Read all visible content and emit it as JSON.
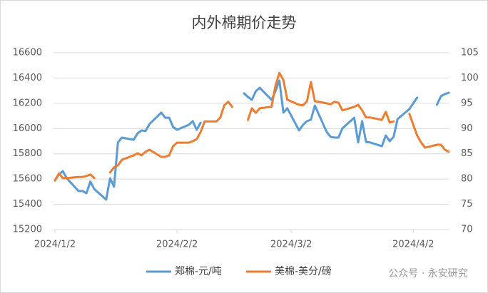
{
  "chart_data": {
    "type": "line",
    "title": "内外棉期价走势",
    "x": [
      "2024-01-02",
      "2024-01-03",
      "2024-01-04",
      "2024-01-05",
      "2024-01-08",
      "2024-01-09",
      "2024-01-10",
      "2024-01-11",
      "2024-01-12",
      "2024-01-15",
      "2024-01-16",
      "2024-01-17",
      "2024-01-18",
      "2024-01-19",
      "2024-01-22",
      "2024-01-23",
      "2024-01-24",
      "2024-01-25",
      "2024-01-26",
      "2024-01-29",
      "2024-01-30",
      "2024-01-31",
      "2024-02-01",
      "2024-02-02",
      "2024-02-05",
      "2024-02-06",
      "2024-02-07",
      "2024-02-08",
      "2024-02-09",
      "2024-02-12",
      "2024-02-13",
      "2024-02-14",
      "2024-02-15",
      "2024-02-16",
      "2024-02-19",
      "2024-02-20",
      "2024-02-21",
      "2024-02-22",
      "2024-02-23",
      "2024-02-26",
      "2024-02-27",
      "2024-02-28",
      "2024-02-29",
      "2024-03-01",
      "2024-03-04",
      "2024-03-05",
      "2024-03-06",
      "2024-03-07",
      "2024-03-08",
      "2024-03-11",
      "2024-03-12",
      "2024-03-13",
      "2024-03-14",
      "2024-03-15",
      "2024-03-18",
      "2024-03-19",
      "2024-03-20",
      "2024-03-21",
      "2024-03-22",
      "2024-03-25",
      "2024-03-26",
      "2024-03-27",
      "2024-03-28",
      "2024-03-29",
      "2024-04-01",
      "2024-04-02",
      "2024-04-03",
      "2024-04-04",
      "2024-04-05",
      "2024-04-08",
      "2024-04-09",
      "2024-04-10",
      "2024-04-11"
    ],
    "xlim": [
      "2024-01-02",
      "2024-04-11"
    ],
    "xticks": [
      {
        "value": "2024-01-02",
        "label": "2024/1/2"
      },
      {
        "value": "2024-02-02",
        "label": "2024/2/2"
      },
      {
        "value": "2024-03-02",
        "label": "2024/3/2"
      },
      {
        "value": "2024-04-02",
        "label": "2024/4/2"
      }
    ],
    "ylim": [
      15200,
      16600
    ],
    "yticks": [
      15200,
      15400,
      15600,
      15800,
      16000,
      16200,
      16400,
      16600
    ],
    "y2lim": [
      70,
      105
    ],
    "y2ticks": [
      70,
      75,
      80,
      85,
      90,
      95,
      100,
      105
    ],
    "grid": true,
    "legend": "bottom",
    "series": [
      {
        "name": "郑棉-元/吨",
        "color": "#5b9bd5",
        "values": [
          15590,
          15635,
          15663,
          15606,
          15505,
          15505,
          15488,
          15580,
          15520,
          15437,
          15606,
          15540,
          15890,
          15928,
          15911,
          15962,
          15985,
          15980,
          16035,
          16126,
          16086,
          16086,
          16013,
          15990,
          16030,
          16058,
          15990,
          16046,
          null,
          null,
          null,
          null,
          null,
          null,
          16278,
          16250,
          16227,
          16295,
          16323,
          16227,
          16295,
          16380,
          16126,
          16160,
          15985,
          16030,
          16058,
          16070,
          16182,
          15973,
          15934,
          15928,
          15928,
          16002,
          16086,
          15890,
          16058,
          15894,
          15890,
          15860,
          15945,
          15900,
          15934,
          16075,
          16154,
          16200,
          16245,
          null,
          null,
          16188,
          16255,
          16273,
          16284
        ]
      },
      {
        "name": "美棉-美分/磅",
        "color": "#ed7d31",
        "axis": "y2",
        "values": [
          79.7,
          81.1,
          80.2,
          80.2,
          80.4,
          80.4,
          80.6,
          80.9,
          80.2,
          null,
          81.3,
          82.3,
          82.7,
          83.8,
          84.7,
          85.1,
          84.7,
          85.4,
          85.8,
          84.4,
          84.4,
          84.7,
          86.5,
          87.2,
          87.2,
          87.5,
          87.9,
          89.3,
          91.4,
          91.4,
          92.2,
          94.6,
          95.3,
          94.3,
          null,
          91.7,
          94.0,
          93.1,
          94.0,
          94.3,
          98.5,
          101.0,
          99.6,
          95.7,
          94.7,
          94.6,
          95.4,
          99.2,
          95.4,
          95.0,
          94.8,
          95.3,
          95.1,
          93.6,
          94.3,
          94.7,
          93.6,
          92.2,
          92.2,
          91.7,
          93.3,
          91.2,
          91.4,
          null,
          92.9,
          90.7,
          88.6,
          87.2,
          86.2,
          86.8,
          86.8,
          85.8,
          85.4
        ]
      }
    ],
    "watermark": "公众号 · 永安研究"
  }
}
